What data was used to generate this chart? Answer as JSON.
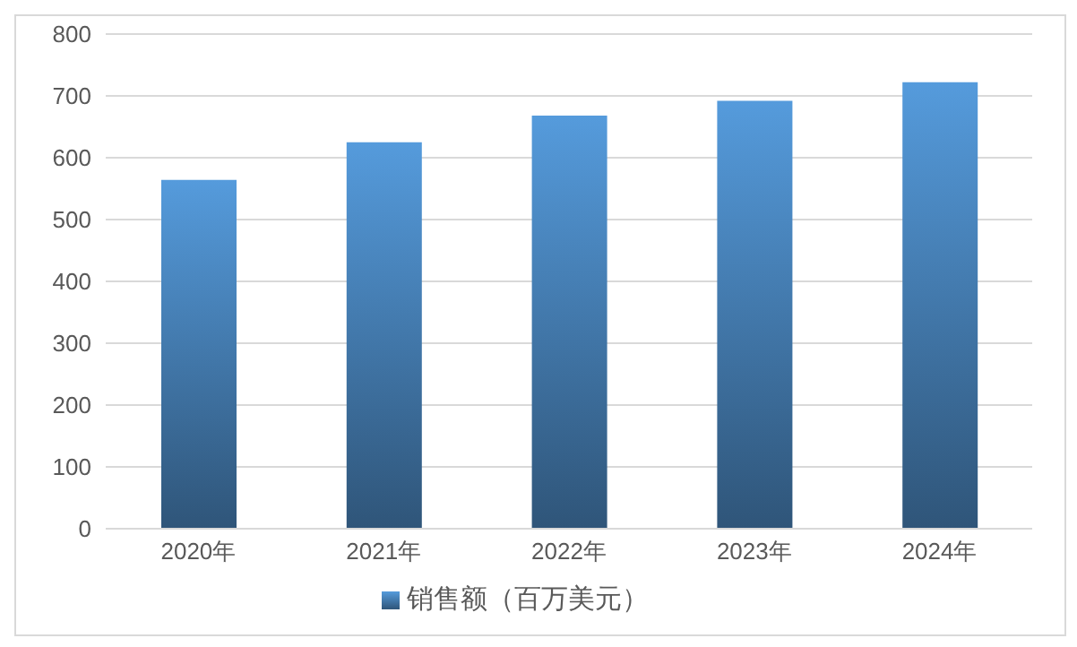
{
  "chart_data": {
    "type": "bar",
    "categories": [
      "2020年",
      "2021年",
      "2022年",
      "2023年",
      "2024年"
    ],
    "series": [
      {
        "name": "销售额（百万美元）",
        "color": "#559bdc",
        "values": [
          564,
          625,
          668,
          692,
          722
        ]
      }
    ],
    "ylim": [
      0,
      800
    ],
    "yticks": [
      0,
      100,
      200,
      300,
      400,
      500,
      600,
      700,
      800
    ],
    "grid": "y",
    "legend": "bottom"
  }
}
